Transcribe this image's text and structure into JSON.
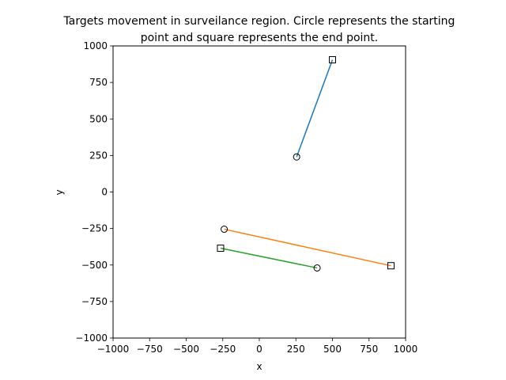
{
  "chart_data": {
    "type": "line",
    "title_lines": [
      "Targets movement in surveilance region. Circle represents the starting",
      "point and square represents the end point."
    ],
    "xlabel": "x",
    "ylabel": "y",
    "xlim": [
      -1000,
      1000
    ],
    "ylim": [
      -1000,
      1000
    ],
    "xticks": [
      -1000,
      -750,
      -500,
      -250,
      0,
      250,
      500,
      750,
      1000
    ],
    "yticks": [
      -1000,
      -750,
      -500,
      -250,
      0,
      250,
      500,
      750,
      1000
    ],
    "grid": false,
    "series": [
      {
        "color": "#1f77b4",
        "start": {
          "x": 255,
          "y": 240
        },
        "end": {
          "x": 500,
          "y": 905
        }
      },
      {
        "color": "#ff7f0e",
        "start": {
          "x": -240,
          "y": -255
        },
        "end": {
          "x": 900,
          "y": -505
        }
      },
      {
        "color": "#2ca02c",
        "start": {
          "x": 395,
          "y": -520
        },
        "end": {
          "x": -265,
          "y": -385
        }
      }
    ]
  }
}
